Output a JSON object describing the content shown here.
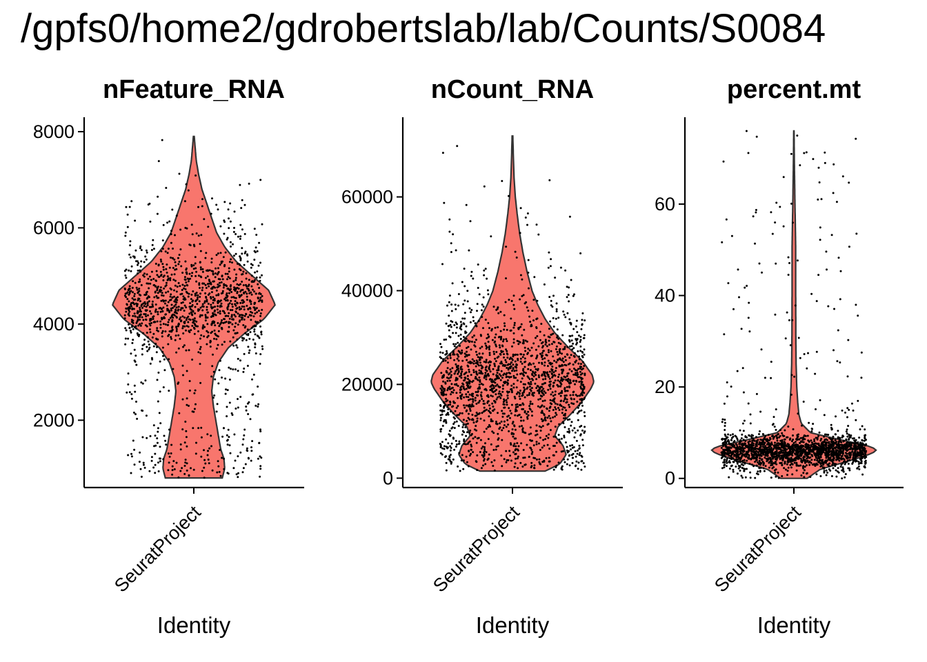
{
  "title": "/gpfs0/home2/gdrobertslab/lab/Counts/S0084",
  "colors": {
    "violin_fill": "#F8766D",
    "violin_stroke": "#333333",
    "point": "#000000",
    "axis": "#000000"
  },
  "chart_data": [
    {
      "type": "violin",
      "title": "nFeature_RNA",
      "categories": [
        "SeuratProject"
      ],
      "xlabel": "Identity",
      "ylabel": "",
      "ylim": [
        600,
        8300
      ],
      "yticks": [
        2000,
        4000,
        6000,
        8000
      ],
      "ytick_labels": [
        "2000",
        "4000",
        "6000",
        "8000"
      ],
      "range": [
        800,
        7900
      ],
      "density": [
        [
          800,
          0.35
        ],
        [
          1000,
          0.38
        ],
        [
          1200,
          0.37
        ],
        [
          1400,
          0.33
        ],
        [
          1700,
          0.3
        ],
        [
          2000,
          0.27
        ],
        [
          2300,
          0.24
        ],
        [
          2600,
          0.22
        ],
        [
          2900,
          0.24
        ],
        [
          3200,
          0.3
        ],
        [
          3500,
          0.42
        ],
        [
          3800,
          0.62
        ],
        [
          4100,
          0.86
        ],
        [
          4400,
          1.0
        ],
        [
          4700,
          0.92
        ],
        [
          5000,
          0.72
        ],
        [
          5300,
          0.52
        ],
        [
          5600,
          0.38
        ],
        [
          5900,
          0.28
        ],
        [
          6200,
          0.22
        ],
        [
          6500,
          0.16
        ],
        [
          6800,
          0.1
        ],
        [
          7100,
          0.06
        ],
        [
          7400,
          0.03
        ],
        [
          7700,
          0.015
        ],
        [
          7900,
          0.005
        ]
      ],
      "n_points": 1500
    },
    {
      "type": "violin",
      "title": "nCount_RNA",
      "categories": [
        "SeuratProject"
      ],
      "xlabel": "Identity",
      "ylabel": "",
      "ylim": [
        -2000,
        77000
      ],
      "yticks": [
        0,
        20000,
        40000,
        60000
      ],
      "ytick_labels": [
        "0",
        "20000",
        "40000",
        "60000"
      ],
      "range": [
        1500,
        73000
      ],
      "density": [
        [
          1500,
          0.4
        ],
        [
          3000,
          0.58
        ],
        [
          5000,
          0.66
        ],
        [
          7000,
          0.62
        ],
        [
          9000,
          0.52
        ],
        [
          11000,
          0.56
        ],
        [
          13000,
          0.68
        ],
        [
          16000,
          0.84
        ],
        [
          19000,
          0.96
        ],
        [
          20500,
          1.0
        ],
        [
          22000,
          0.98
        ],
        [
          25000,
          0.86
        ],
        [
          28000,
          0.68
        ],
        [
          31000,
          0.52
        ],
        [
          34000,
          0.4
        ],
        [
          37000,
          0.31
        ],
        [
          40000,
          0.24
        ],
        [
          44000,
          0.18
        ],
        [
          48000,
          0.13
        ],
        [
          52000,
          0.09
        ],
        [
          56000,
          0.06
        ],
        [
          60000,
          0.035
        ],
        [
          64000,
          0.02
        ],
        [
          68000,
          0.012
        ],
        [
          73000,
          0.004
        ]
      ],
      "n_points": 1900
    },
    {
      "type": "violin",
      "title": "percent.mt",
      "categories": [
        "SeuratProject"
      ],
      "xlabel": "Identity",
      "ylabel": "",
      "ylim": [
        -2,
        79
      ],
      "yticks": [
        0,
        20,
        40,
        60
      ],
      "ytick_labels": [
        "0",
        "20",
        "40",
        "60"
      ],
      "range": [
        0,
        76
      ],
      "density": [
        [
          0,
          0.16
        ],
        [
          2,
          0.32
        ],
        [
          4,
          0.7
        ],
        [
          5.5,
          0.95
        ],
        [
          6.3,
          1.0
        ],
        [
          7,
          0.92
        ],
        [
          8.5,
          0.55
        ],
        [
          10,
          0.2
        ],
        [
          12,
          0.09
        ],
        [
          14,
          0.06
        ],
        [
          17,
          0.045
        ],
        [
          20,
          0.035
        ],
        [
          25,
          0.027
        ],
        [
          30,
          0.024
        ],
        [
          40,
          0.022
        ],
        [
          50,
          0.022
        ],
        [
          55,
          0.018
        ],
        [
          60,
          0.013
        ],
        [
          65,
          0.009
        ],
        [
          70,
          0.005
        ],
        [
          76,
          0.002
        ]
      ],
      "n_points": 2000
    }
  ]
}
